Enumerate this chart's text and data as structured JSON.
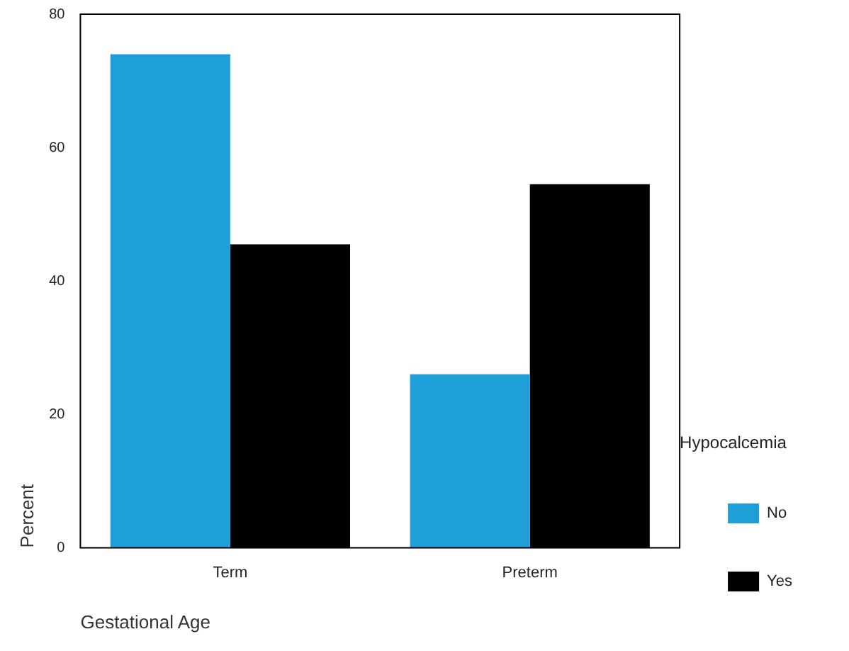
{
  "chart_data": {
    "type": "bar",
    "xlabel": "Gestational Age",
    "ylabel": "Percent",
    "legend_title": "Hypocalcemia",
    "categories": [
      "Term",
      "Preterm"
    ],
    "series": [
      {
        "name": "No",
        "color": "#1e9fd8",
        "values": [
          74,
          26
        ]
      },
      {
        "name": "Yes",
        "color": "#000000",
        "values": [
          45.5,
          54.5
        ]
      }
    ],
    "ylim": [
      0,
      80
    ],
    "yticks": [
      0,
      20,
      40,
      60,
      80
    ],
    "grid": false,
    "legend": "right"
  }
}
